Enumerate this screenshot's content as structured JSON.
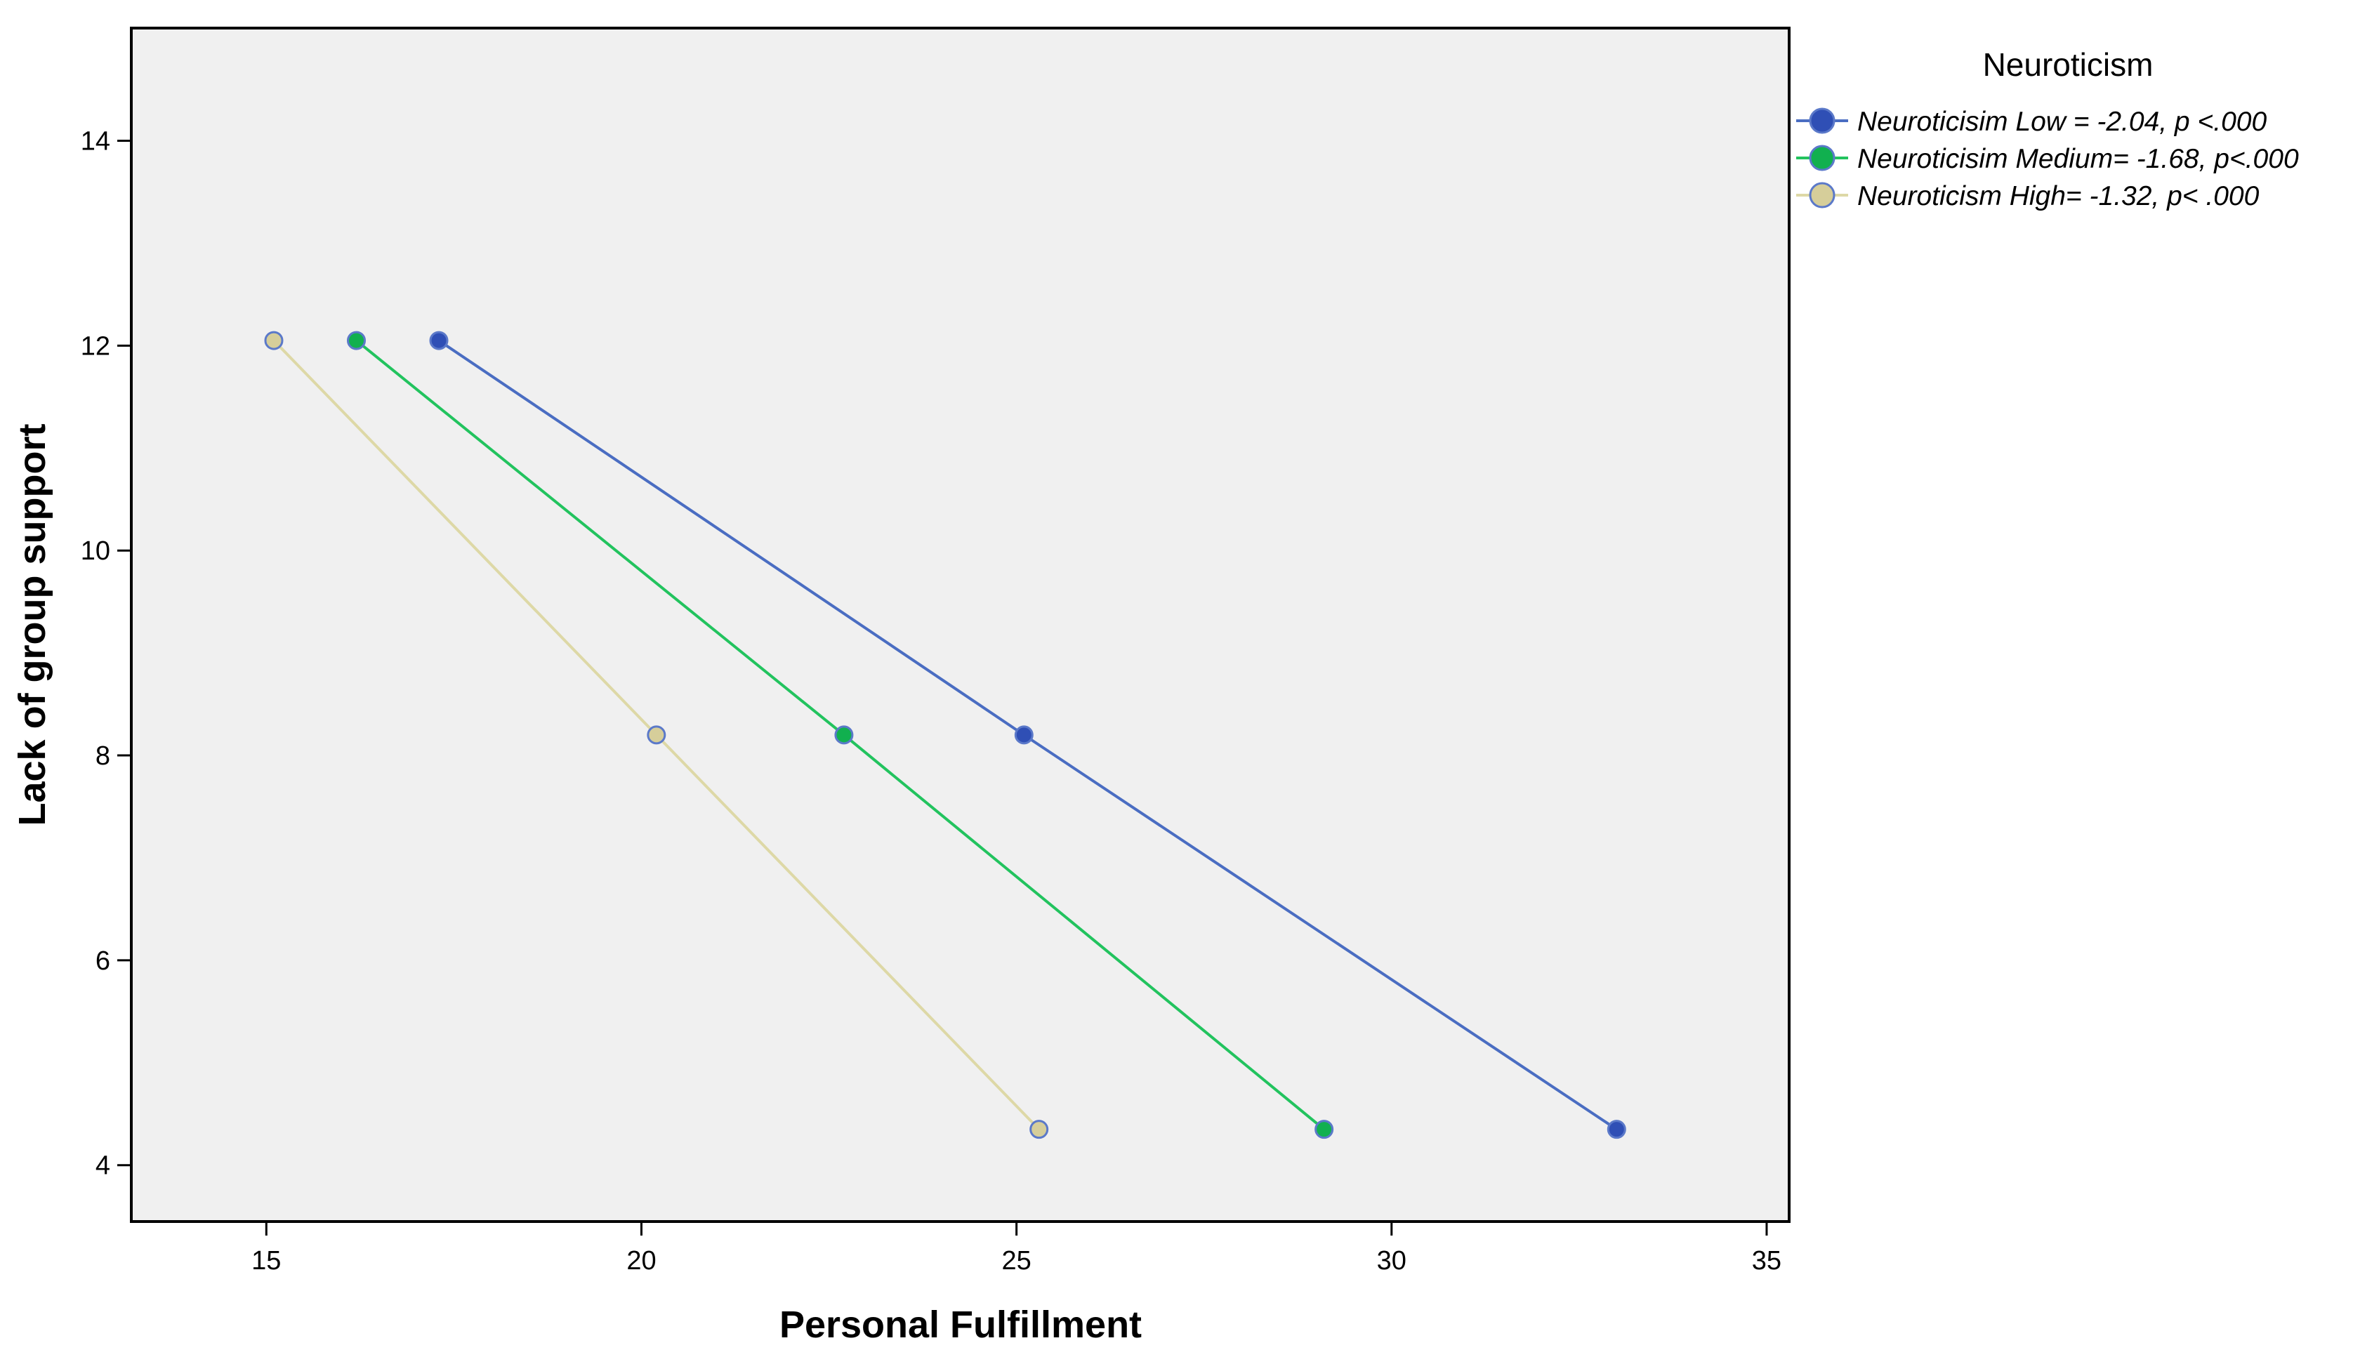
{
  "chart_data": {
    "type": "line",
    "xlabel": "Personal Fulfillment",
    "ylabel": "Lack of group support",
    "xlim": [
      13.2,
      35.3
    ],
    "ylim": [
      3.45,
      15.1
    ],
    "xticks": [
      15,
      20,
      25,
      30,
      35
    ],
    "yticks": [
      4,
      6,
      8,
      10,
      12,
      14
    ],
    "grid": false,
    "legend": {
      "title": "Neuroticism",
      "placement": "right-top"
    },
    "series": [
      {
        "name": "Neuroticisim Low = -2.04, p <.000",
        "color": "#4a6dc2",
        "marker_color": "#2f4fb5",
        "points": [
          {
            "x": 17.3,
            "y": 12.05
          },
          {
            "x": 25.1,
            "y": 8.2
          },
          {
            "x": 33.0,
            "y": 4.35
          }
        ]
      },
      {
        "name": "Neuroticisim Medium= -1.68, p<.000",
        "color": "#22c35e",
        "marker_color": "#11b04f",
        "points": [
          {
            "x": 16.2,
            "y": 12.05
          },
          {
            "x": 22.7,
            "y": 8.2
          },
          {
            "x": 29.1,
            "y": 4.35
          }
        ]
      },
      {
        "name": "Neuroticism High= -1.32, p< .000",
        "color": "#ddd8a6",
        "marker_color": "#d6ce9a",
        "points": [
          {
            "x": 15.1,
            "y": 12.05
          },
          {
            "x": 20.2,
            "y": 8.2
          },
          {
            "x": 25.3,
            "y": 4.35
          }
        ]
      }
    ]
  }
}
